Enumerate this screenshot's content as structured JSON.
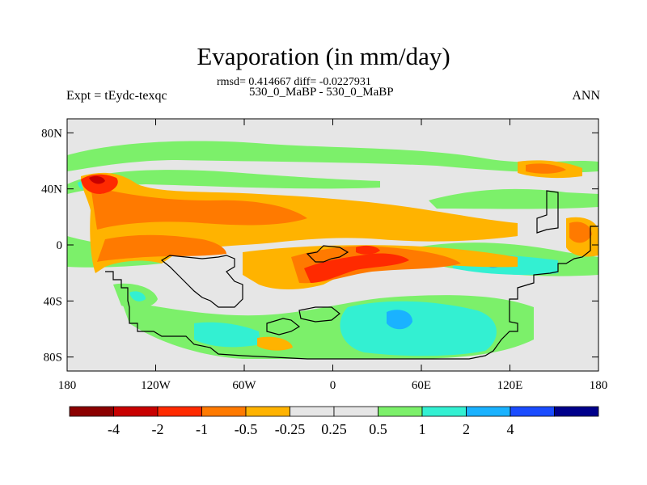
{
  "title": "Evaporation (in mm/day)",
  "stats": "rmsd= 0.414667 diff= -0.0227931",
  "runs": "530_0_MaBP - 530_0_MaBP",
  "left_label": "Expt = tEydc-texqc",
  "right_label": "ANN",
  "map": {
    "background_color": "#e6e6e6",
    "lat_ticks": [
      {
        "value": 80,
        "label": "80N"
      },
      {
        "value": 40,
        "label": "40N"
      },
      {
        "value": 0,
        "label": "0"
      },
      {
        "value": -40,
        "label": "40S"
      },
      {
        "value": -80,
        "label": "80S"
      }
    ],
    "lon_ticks": [
      {
        "value": -180,
        "label": "180"
      },
      {
        "value": -120,
        "label": "120W"
      },
      {
        "value": -60,
        "label": "60W"
      },
      {
        "value": 0,
        "label": "0"
      },
      {
        "value": 60,
        "label": "60E"
      },
      {
        "value": 120,
        "label": "120E"
      },
      {
        "value": 180,
        "label": "180"
      }
    ]
  },
  "colorbar": {
    "colors": [
      "#8b0000",
      "#c80000",
      "#ff2a00",
      "#ff7a00",
      "#ffb300",
      "#e6e6e6",
      "#e6e6e6",
      "#7cf06a",
      "#33f0d2",
      "#1ab2ff",
      "#1a4cff",
      "#00008b"
    ],
    "labels": [
      "-4",
      "-2",
      "-1",
      "-0.5",
      "-0.25",
      "0.25",
      "0.5",
      "1",
      "2",
      "4"
    ]
  }
}
